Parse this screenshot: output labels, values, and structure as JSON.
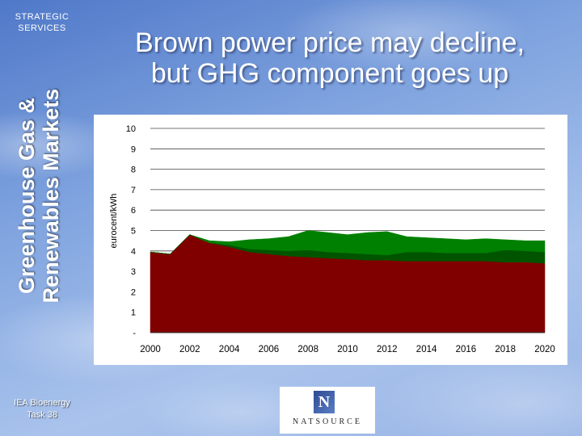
{
  "sidebar": {
    "brand": "STRATEGIC\nSERVICES",
    "vertical_title": "Greenhouse Gas &\nRenewables Markets",
    "footer": "IEA Bioenergy\nTask 38"
  },
  "slide": {
    "title": "Brown power price may decline,\nbut GHG component goes up"
  },
  "logo": {
    "mark": "N",
    "name": "NATSOURCE"
  },
  "colors": {
    "brown_area": "#800000",
    "ghg_light": "#008000",
    "ghg_dark": "#005400"
  },
  "chart_data": {
    "type": "area",
    "stacked": true,
    "ylabel": "eurocent/kWh",
    "ylim": [
      0,
      10
    ],
    "yticks": [
      "-",
      "1",
      "2",
      "3",
      "4",
      "5",
      "6",
      "7",
      "8",
      "9",
      "10"
    ],
    "x_tick_labels": [
      "2000",
      "2002",
      "2004",
      "2006",
      "2008",
      "2010",
      "2012",
      "2014",
      "2016",
      "2018",
      "2020"
    ],
    "xlim": [
      2000,
      2020
    ],
    "grid": "horizontal",
    "legend": "none",
    "x": [
      2000,
      2001,
      2002,
      2003,
      2004,
      2005,
      2006,
      2007,
      2008,
      2009,
      2010,
      2011,
      2012,
      2013,
      2014,
      2015,
      2016,
      2017,
      2018,
      2019,
      2020
    ],
    "series": [
      {
        "values": [
          3.95,
          3.85,
          4.8,
          4.4,
          4.2,
          3.95,
          3.85,
          3.75,
          3.7,
          3.65,
          3.6,
          3.55,
          3.55,
          3.5,
          3.5,
          3.5,
          3.5,
          3.5,
          3.45,
          3.45,
          3.4
        ]
      },
      {
        "values": [
          0,
          0,
          0,
          0,
          0.1,
          0.15,
          0.2,
          0.25,
          0.35,
          0.3,
          0.3,
          0.3,
          0.25,
          0.45,
          0.45,
          0.4,
          0.4,
          0.4,
          0.6,
          0.55,
          0.55
        ]
      },
      {
        "values": [
          0,
          0,
          0,
          0.1,
          0.15,
          0.45,
          0.55,
          0.7,
          0.95,
          0.95,
          0.9,
          1.05,
          1.15,
          0.75,
          0.7,
          0.7,
          0.65,
          0.7,
          0.5,
          0.5,
          0.55
        ]
      }
    ]
  }
}
